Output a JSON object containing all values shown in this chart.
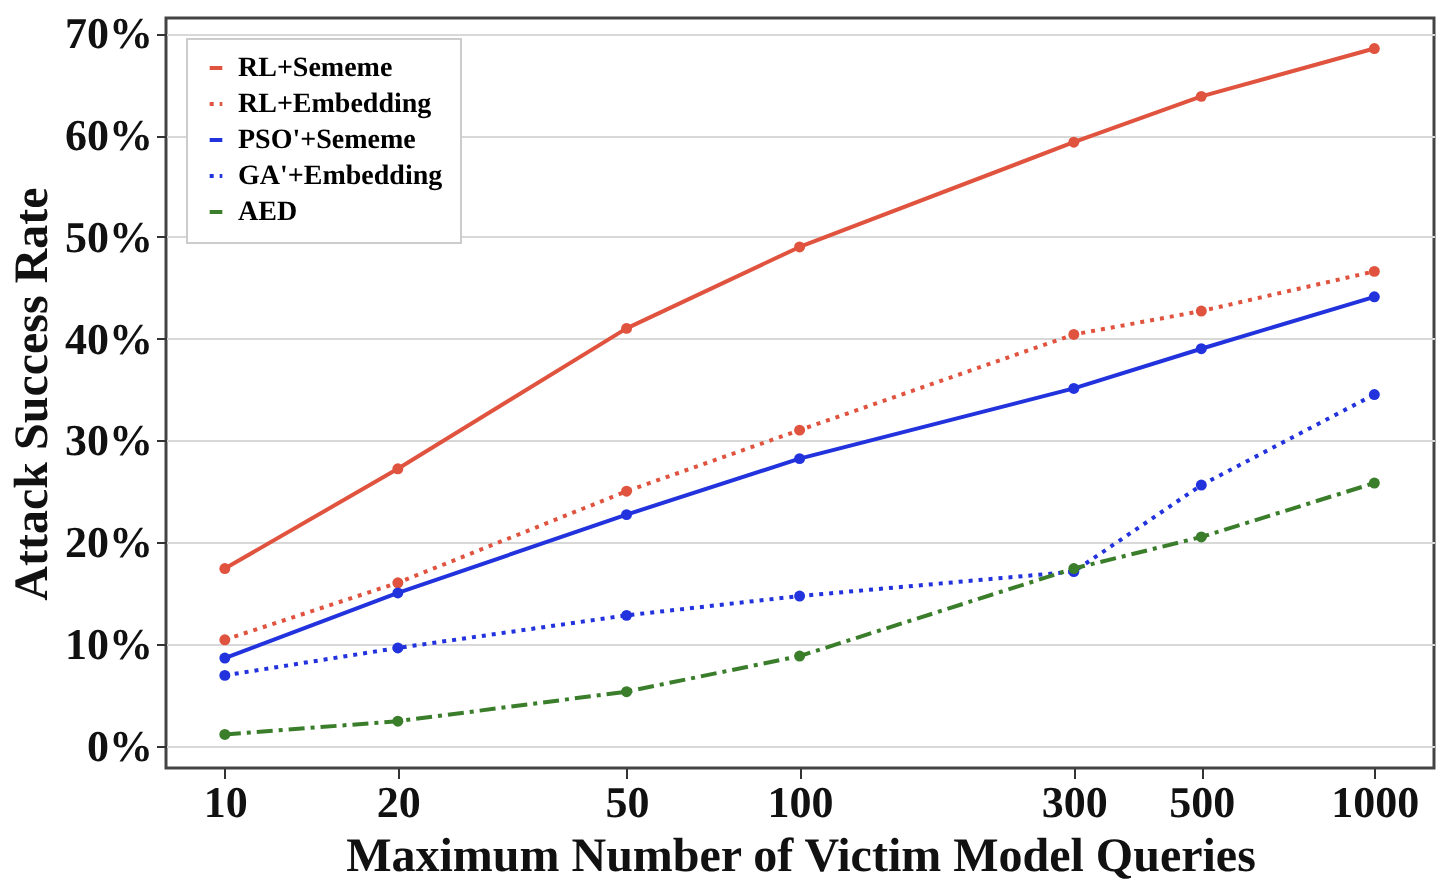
{
  "chart_data": {
    "type": "line",
    "xlabel": "Maximum Number of Victim Model Queries",
    "ylabel": "Attack Success Rate",
    "x": [
      10,
      20,
      50,
      100,
      300,
      500,
      1000
    ],
    "log": "x",
    "xlim": [
      7.9,
      1270
    ],
    "xticks": [
      10,
      20,
      50,
      100,
      300,
      500,
      1000
    ],
    "ylim": [
      -2.2,
      71.5
    ],
    "yticks": [
      {
        "value": 0,
        "label": "0%"
      },
      {
        "value": 10,
        "label": "10%"
      },
      {
        "value": 20,
        "label": "20%"
      },
      {
        "value": 30,
        "label": "30%"
      },
      {
        "value": 40,
        "label": "40%"
      },
      {
        "value": 50,
        "label": "50%"
      },
      {
        "value": 60,
        "label": "60%"
      },
      {
        "value": 70,
        "label": "70%"
      }
    ],
    "grid": "y",
    "legend": "top left",
    "marker": "circle",
    "series": [
      {
        "name": "RL+Sememe",
        "color": "#e0533e",
        "line_style": "solid",
        "values": [
          17.4,
          27.2,
          41.0,
          49.0,
          59.3,
          63.8,
          68.5
        ]
      },
      {
        "name": "RL+Embedding",
        "color": "#e0533e",
        "line_style": "dotted",
        "values": [
          10.4,
          16.0,
          25.0,
          31.0,
          40.4,
          42.7,
          46.6
        ]
      },
      {
        "name": "PSO'+Sememe",
        "color": "#2233dd",
        "line_style": "solid",
        "values": [
          8.6,
          15.0,
          22.7,
          28.2,
          35.1,
          39.0,
          44.1
        ]
      },
      {
        "name": "GA'+Embedding",
        "color": "#2233dd",
        "line_style": "dotted",
        "values": [
          6.9,
          9.6,
          12.8,
          14.7,
          17.1,
          25.6,
          34.5
        ]
      },
      {
        "name": "AED",
        "color": "#3a7d2a",
        "line_style": "dashed",
        "values": [
          1.1,
          2.4,
          5.3,
          8.8,
          17.4,
          20.5,
          25.8
        ]
      }
    ]
  }
}
